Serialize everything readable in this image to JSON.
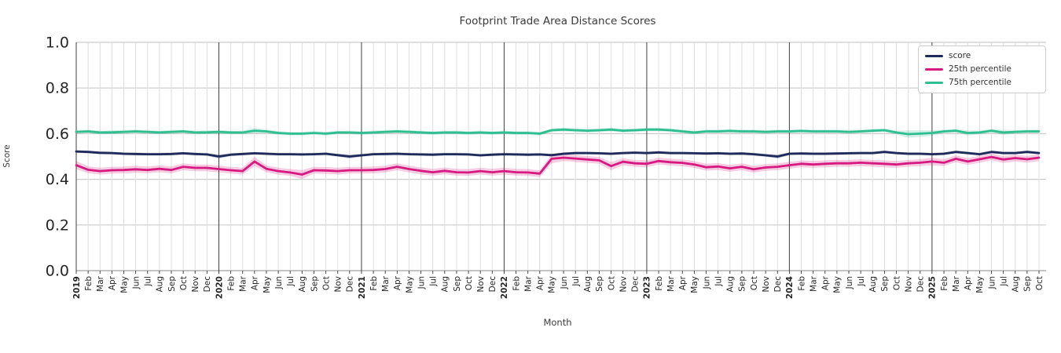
{
  "chart_data": {
    "type": "line",
    "title": "Footprint Trade Area Distance Scores",
    "xlabel": "Month",
    "ylabel": "Score",
    "ylim": [
      0.0,
      1.0
    ],
    "y_ticks": [
      "0.0",
      "0.2",
      "0.4",
      "0.6",
      "0.8",
      "1.0"
    ],
    "grid": "on",
    "legend_position": "upper right",
    "x_tick_labels": [
      "2019",
      "Feb",
      "Mar",
      "Apr",
      "May",
      "Jun",
      "Jul",
      "Aug",
      "Sep",
      "Oct",
      "Nov",
      "Dec",
      "2020",
      "Feb",
      "Mar",
      "Apr",
      "May",
      "Jun",
      "Jul",
      "Aug",
      "Sep",
      "Oct",
      "Nov",
      "Dec",
      "2021",
      "Feb",
      "Mar",
      "Apr",
      "May",
      "Jun",
      "Jul",
      "Aug",
      "Sep",
      "Oct",
      "Nov",
      "Dec",
      "2022",
      "Feb",
      "Mar",
      "Apr",
      "May",
      "Jun",
      "Jul",
      "Aug",
      "Sep",
      "Oct",
      "Nov",
      "Dec",
      "2023",
      "Feb",
      "Mar",
      "Apr",
      "May",
      "Jun",
      "Jul",
      "Aug",
      "Sep",
      "Oct",
      "Nov",
      "Dec",
      "2024",
      "Feb",
      "Mar",
      "Apr",
      "May",
      "Jun",
      "Jul",
      "Aug",
      "Sep",
      "Oct",
      "Nov",
      "Dec",
      "2025",
      "Feb",
      "Mar",
      "Apr",
      "May",
      "Jun",
      "Jul",
      "Aug",
      "Sep",
      "Oct"
    ],
    "series": [
      {
        "name": "score",
        "color": "#1e2a5a",
        "band_halfwidth_default": 0.006,
        "band_halfwidth_overrides": {
          "12": 0.009,
          "23": 0.009,
          "59": 0.009
        },
        "values": [
          0.522,
          0.52,
          0.516,
          0.515,
          0.512,
          0.511,
          0.51,
          0.51,
          0.511,
          0.514,
          0.511,
          0.509,
          0.5,
          0.508,
          0.511,
          0.514,
          0.512,
          0.51,
          0.51,
          0.509,
          0.51,
          0.512,
          0.506,
          0.5,
          0.505,
          0.51,
          0.511,
          0.512,
          0.51,
          0.509,
          0.508,
          0.51,
          0.51,
          0.509,
          0.505,
          0.508,
          0.51,
          0.509,
          0.508,
          0.509,
          0.506,
          0.512,
          0.515,
          0.515,
          0.514,
          0.512,
          0.515,
          0.517,
          0.515,
          0.518,
          0.515,
          0.515,
          0.514,
          0.513,
          0.514,
          0.512,
          0.513,
          0.51,
          0.505,
          0.5,
          0.512,
          0.513,
          0.512,
          0.512,
          0.513,
          0.514,
          0.515,
          0.515,
          0.52,
          0.515,
          0.512,
          0.512,
          0.51,
          0.512,
          0.52,
          0.515,
          0.51,
          0.52,
          0.515,
          0.515,
          0.52,
          0.515
        ]
      },
      {
        "name": "25th percentile",
        "color": "#d61a80",
        "band_halfwidth_default": 0.015,
        "band_halfwidth_overrides": {
          "0": 0.018,
          "15": 0.02,
          "19": 0.02,
          "40": 0.02,
          "45": 0.018,
          "72": 0.017
        },
        "values": [
          0.462,
          0.442,
          0.436,
          0.44,
          0.441,
          0.444,
          0.441,
          0.446,
          0.441,
          0.455,
          0.45,
          0.45,
          0.445,
          0.44,
          0.436,
          0.478,
          0.446,
          0.436,
          0.43,
          0.421,
          0.44,
          0.439,
          0.436,
          0.44,
          0.44,
          0.441,
          0.445,
          0.455,
          0.445,
          0.437,
          0.431,
          0.437,
          0.431,
          0.43,
          0.436,
          0.431,
          0.436,
          0.431,
          0.43,
          0.425,
          0.49,
          0.495,
          0.491,
          0.487,
          0.483,
          0.458,
          0.477,
          0.47,
          0.468,
          0.48,
          0.475,
          0.472,
          0.465,
          0.453,
          0.456,
          0.448,
          0.455,
          0.444,
          0.452,
          0.455,
          0.462,
          0.468,
          0.465,
          0.468,
          0.47,
          0.47,
          0.473,
          0.47,
          0.468,
          0.465,
          0.47,
          0.473,
          0.478,
          0.473,
          0.49,
          0.478,
          0.488,
          0.498,
          0.487,
          0.493,
          0.488,
          0.495
        ]
      },
      {
        "name": "75th percentile",
        "color": "#2fbe90",
        "band_halfwidth_default": 0.008,
        "band_halfwidth_overrides": {
          "15": 0.012,
          "70": 0.016,
          "71": 0.014,
          "72": 0.012,
          "75": 0.011,
          "78": 0.011
        },
        "values": [
          0.608,
          0.61,
          0.605,
          0.606,
          0.608,
          0.61,
          0.608,
          0.605,
          0.608,
          0.61,
          0.605,
          0.606,
          0.608,
          0.605,
          0.605,
          0.613,
          0.61,
          0.603,
          0.6,
          0.6,
          0.603,
          0.6,
          0.605,
          0.605,
          0.603,
          0.605,
          0.608,
          0.61,
          0.608,
          0.605,
          0.603,
          0.605,
          0.605,
          0.603,
          0.605,
          0.603,
          0.605,
          0.603,
          0.603,
          0.6,
          0.615,
          0.618,
          0.615,
          0.613,
          0.615,
          0.618,
          0.613,
          0.615,
          0.618,
          0.618,
          0.615,
          0.61,
          0.605,
          0.61,
          0.61,
          0.612,
          0.61,
          0.61,
          0.608,
          0.61,
          0.61,
          0.612,
          0.61,
          0.61,
          0.61,
          0.608,
          0.61,
          0.613,
          0.615,
          0.605,
          0.598,
          0.6,
          0.603,
          0.61,
          0.613,
          0.603,
          0.605,
          0.613,
          0.605,
          0.608,
          0.61,
          0.61
        ]
      }
    ]
  }
}
